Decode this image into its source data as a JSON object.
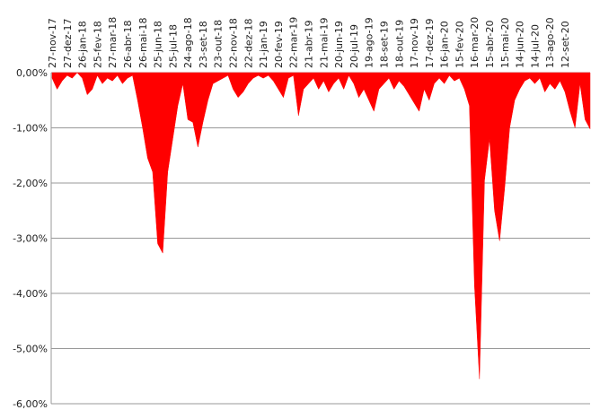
{
  "chart_data": {
    "type": "area",
    "color": "#ff0000",
    "categories": [
      "27-nov-17",
      null,
      null,
      "27-dez-17",
      null,
      null,
      "26-jan-18",
      null,
      null,
      "25-fev-18",
      null,
      null,
      "27-mar-18",
      null,
      null,
      "26-abr-18",
      null,
      null,
      "26-mai-18",
      null,
      null,
      "25-jun-18",
      null,
      null,
      "25-jul-18",
      null,
      null,
      "24-ago-18",
      null,
      null,
      "23-set-18",
      null,
      null,
      "23-out-18",
      null,
      null,
      "22-nov-18",
      null,
      null,
      "22-dez-18",
      null,
      null,
      "21-jan-19",
      null,
      null,
      "20-fev-19",
      null,
      null,
      "22-mar-19",
      null,
      null,
      "21-abr-19",
      null,
      null,
      "21-mai-19",
      null,
      null,
      "20-jun-19",
      null,
      null,
      "20-jul-19",
      null,
      null,
      "19-ago-19",
      null,
      null,
      "18-set-19",
      null,
      null,
      "18-out-19",
      null,
      null,
      "17-nov-19",
      null,
      null,
      "17-dez-19",
      null,
      null,
      "16-jan-20",
      null,
      null,
      "15-fev-20",
      null,
      null,
      "16-mar-20",
      null,
      null,
      "15-abr-20",
      null,
      null,
      "15-mai-20",
      null,
      null,
      "14-jun-20",
      null,
      null,
      "14-jul-20",
      null,
      null,
      "13-ago-20",
      null,
      null,
      "12-set-20",
      null,
      null,
      null,
      null,
      null
    ],
    "values": [
      -0.1,
      -0.3,
      -0.15,
      -0.05,
      -0.1,
      0,
      -0.1,
      -0.4,
      -0.3,
      -0.05,
      -0.2,
      -0.1,
      -0.15,
      -0.05,
      -0.2,
      -0.1,
      -0.05,
      -0.5,
      -1.0,
      -1.55,
      -1.8,
      -3.1,
      -3.27,
      -1.8,
      -1.2,
      -0.6,
      -0.2,
      -0.85,
      -0.9,
      -1.35,
      -0.9,
      -0.5,
      -0.2,
      -0.15,
      -0.1,
      -0.05,
      -0.3,
      -0.45,
      -0.35,
      -0.2,
      -0.1,
      -0.05,
      -0.1,
      -0.05,
      -0.15,
      -0.3,
      -0.45,
      -0.1,
      -0.05,
      -0.78,
      -0.3,
      -0.2,
      -0.1,
      -0.3,
      -0.15,
      -0.35,
      -0.2,
      -0.1,
      -0.3,
      -0.05,
      -0.2,
      -0.45,
      -0.3,
      -0.5,
      -0.7,
      -0.3,
      -0.2,
      -0.1,
      -0.3,
      -0.15,
      -0.25,
      -0.4,
      -0.55,
      -0.7,
      -0.3,
      -0.5,
      -0.2,
      -0.1,
      -0.2,
      -0.05,
      -0.15,
      -0.1,
      -0.3,
      -0.6,
      -3.85,
      -5.55,
      -1.95,
      -1.2,
      -2.5,
      -3.05,
      -2.1,
      -1.0,
      -0.5,
      -0.3,
      -0.15,
      -0.1,
      -0.2,
      -0.1,
      -0.35,
      -0.2,
      -0.3,
      -0.15,
      -0.35,
      -0.7,
      -1.0,
      -0.2,
      -0.85,
      -1.02
    ],
    "ylim": [
      -6,
      0
    ],
    "yticks": [
      {
        "value": 0,
        "label": "0,00%"
      },
      {
        "value": -1,
        "label": "-1,00%"
      },
      {
        "value": -2,
        "label": "-2,00%"
      },
      {
        "value": -3,
        "label": "-3,00%"
      },
      {
        "value": -4,
        "label": "-4,00%"
      },
      {
        "value": -5,
        "label": "-5,00%"
      },
      {
        "value": -6,
        "label": "-6,00%"
      }
    ],
    "grid": true
  }
}
